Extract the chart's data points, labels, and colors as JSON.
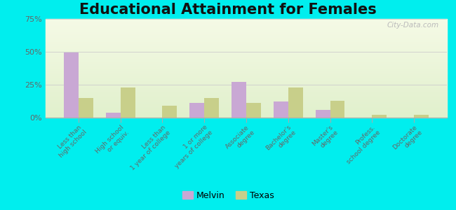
{
  "title": "Educational Attainment for Females",
  "categories": [
    "Less than\nhigh school",
    "High school\nor equiv.",
    "Less than\n1 year of college",
    "1 or more\nyears of college",
    "Associate\ndegree",
    "Bachelor's\ndegree",
    "Master's\ndegree",
    "Profess.\nschool degree",
    "Doctorate\ndegree"
  ],
  "melvin": [
    49.5,
    3.5,
    0.0,
    11.0,
    27.0,
    12.0,
    6.0,
    0.0,
    0.0
  ],
  "texas": [
    15.0,
    23.0,
    9.0,
    15.0,
    11.0,
    23.0,
    13.0,
    2.0,
    2.0
  ],
  "melvin_color": "#c9a8d4",
  "texas_color": "#c8cf8a",
  "outer_bg": "#00eeee",
  "ylim": [
    0,
    75
  ],
  "yticks": [
    0,
    25,
    50,
    75
  ],
  "ytick_labels": [
    "0%",
    "25%",
    "50%",
    "75%"
  ],
  "title_fontsize": 15,
  "legend_labels": [
    "Melvin",
    "Texas"
  ],
  "watermark": "City-Data.com"
}
